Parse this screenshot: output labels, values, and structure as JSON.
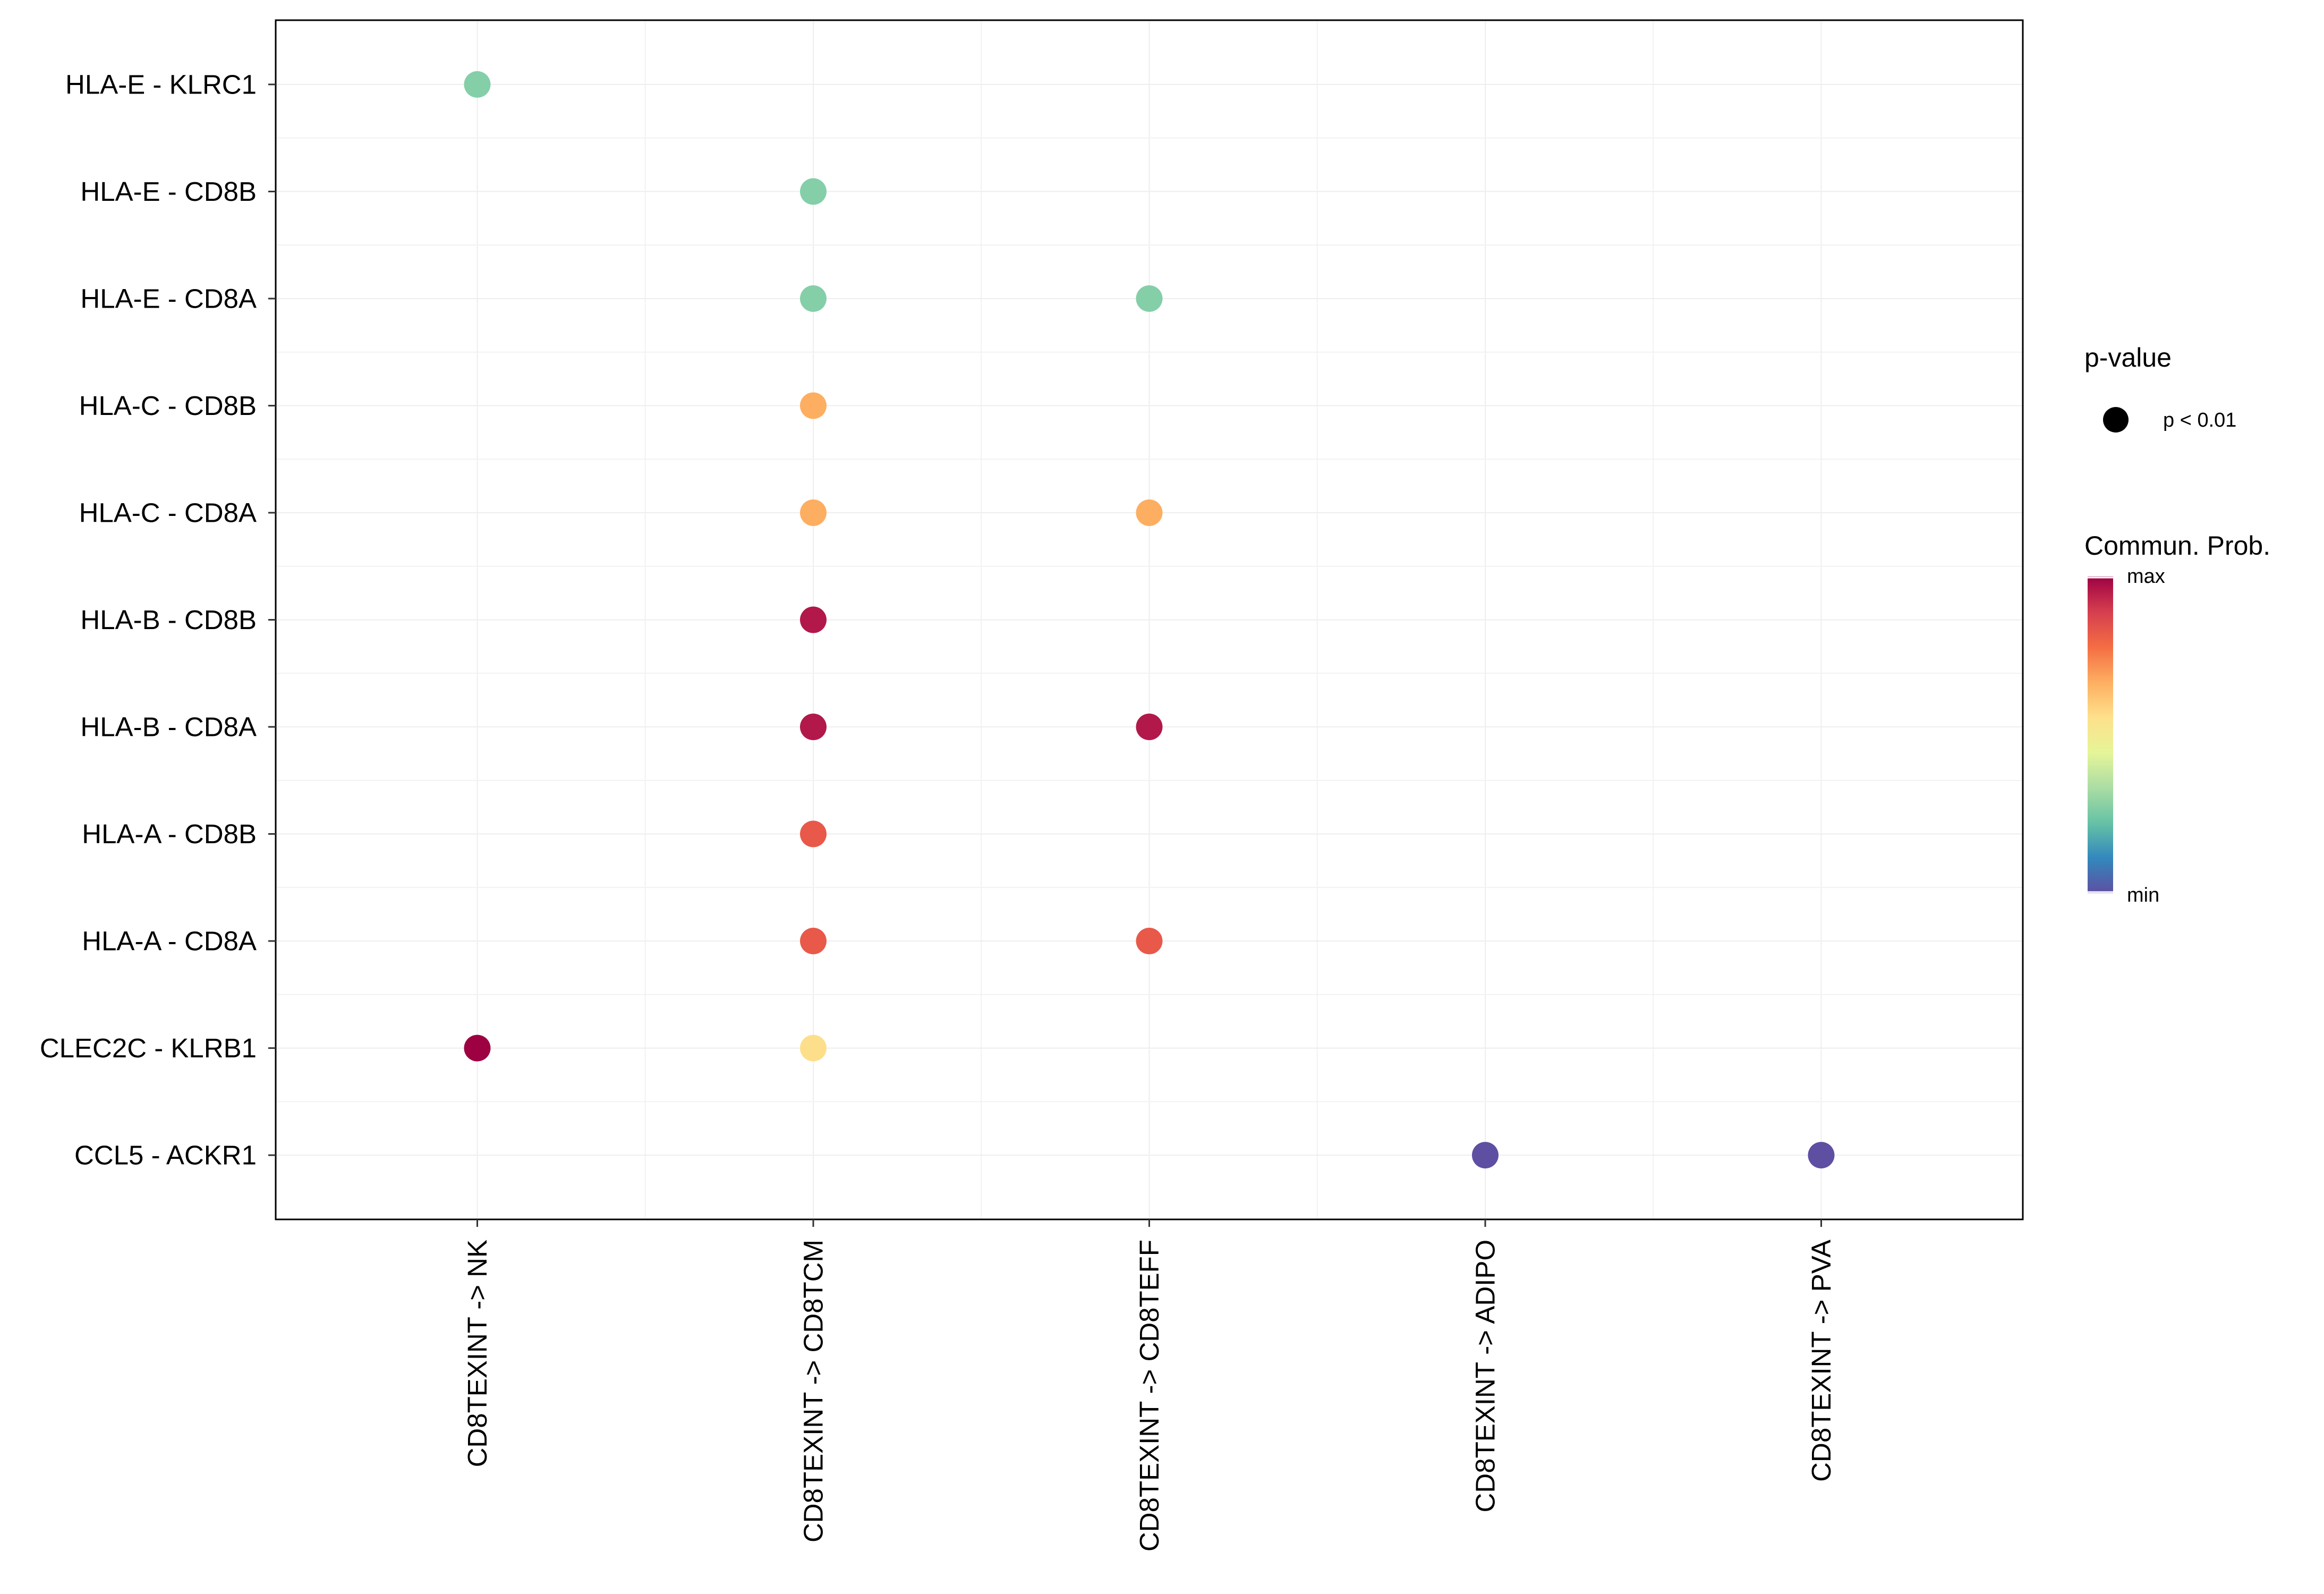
{
  "chart_data": {
    "type": "dot",
    "x_categories": [
      "CD8TEXINT -> NK",
      "CD8TEXINT -> CD8TCM",
      "CD8TEXINT -> CD8TEFF",
      "CD8TEXINT -> ADIPO",
      "CD8TEXINT -> PVA"
    ],
    "y_categories": [
      "HLA-E - KLRC1",
      "HLA-E - CD8B",
      "HLA-E - CD8A",
      "HLA-C - CD8B",
      "HLA-C - CD8A",
      "HLA-B - CD8B",
      "HLA-B - CD8A",
      "HLA-A - CD8B",
      "HLA-A - CD8A",
      "CLEC2C - KLRB1",
      "CCL5 - ACKR1"
    ],
    "points": [
      {
        "x": "CD8TEXINT -> NK",
        "y": "HLA-E - KLRC1",
        "prob_scaled": 0.33,
        "color": "#84cfa8"
      },
      {
        "x": "CD8TEXINT -> CD8TCM",
        "y": "HLA-E - CD8B",
        "prob_scaled": 0.33,
        "color": "#84cfa8"
      },
      {
        "x": "CD8TEXINT -> CD8TCM",
        "y": "HLA-E - CD8A",
        "prob_scaled": 0.33,
        "color": "#84cfa8"
      },
      {
        "x": "CD8TEXINT -> CD8TEFF",
        "y": "HLA-E - CD8A",
        "prob_scaled": 0.33,
        "color": "#84cfa8"
      },
      {
        "x": "CD8TEXINT -> CD8TCM",
        "y": "HLA-C - CD8B",
        "prob_scaled": 0.7,
        "color": "#fdae61"
      },
      {
        "x": "CD8TEXINT -> CD8TCM",
        "y": "HLA-C - CD8A",
        "prob_scaled": 0.7,
        "color": "#fdae61"
      },
      {
        "x": "CD8TEXINT -> CD8TEFF",
        "y": "HLA-C - CD8A",
        "prob_scaled": 0.7,
        "color": "#fdae61"
      },
      {
        "x": "CD8TEXINT -> CD8TCM",
        "y": "HLA-B - CD8B",
        "prob_scaled": 0.96,
        "color": "#b2184a"
      },
      {
        "x": "CD8TEXINT -> CD8TCM",
        "y": "HLA-B - CD8A",
        "prob_scaled": 0.96,
        "color": "#b2184a"
      },
      {
        "x": "CD8TEXINT -> CD8TEFF",
        "y": "HLA-B - CD8A",
        "prob_scaled": 0.96,
        "color": "#b2184a"
      },
      {
        "x": "CD8TEXINT -> CD8TCM",
        "y": "HLA-A - CD8B",
        "prob_scaled": 0.85,
        "color": "#e8594a"
      },
      {
        "x": "CD8TEXINT -> CD8TCM",
        "y": "HLA-A - CD8A",
        "prob_scaled": 0.85,
        "color": "#e8594a"
      },
      {
        "x": "CD8TEXINT -> CD8TEFF",
        "y": "HLA-A - CD8A",
        "prob_scaled": 0.85,
        "color": "#e8594a"
      },
      {
        "x": "CD8TEXINT -> NK",
        "y": "CLEC2C - KLRB1",
        "prob_scaled": 1.0,
        "color": "#9e0142"
      },
      {
        "x": "CD8TEXINT -> CD8TCM",
        "y": "CLEC2C - KLRB1",
        "prob_scaled": 0.6,
        "color": "#fddf8b"
      },
      {
        "x": "CD8TEXINT -> ADIPO",
        "y": "CCL5 - ACKR1",
        "prob_scaled": 0.0,
        "color": "#5e4fa2"
      },
      {
        "x": "CD8TEXINT -> PVA",
        "y": "CCL5 - ACKR1",
        "prob_scaled": 0.0,
        "color": "#5e4fa2"
      }
    ],
    "legend": {
      "pvalue_title": "p-value",
      "pvalue_label": "p < 0.01",
      "color_title": "Commun. Prob.",
      "color_max_label": "max",
      "color_min_label": "min",
      "gradient_colors": [
        "#9e0142",
        "#d53e4f",
        "#f46d43",
        "#fdae61",
        "#fee08b",
        "#e6f598",
        "#abdda4",
        "#66c2a5",
        "#3288bd",
        "#5e4fa2"
      ]
    }
  }
}
